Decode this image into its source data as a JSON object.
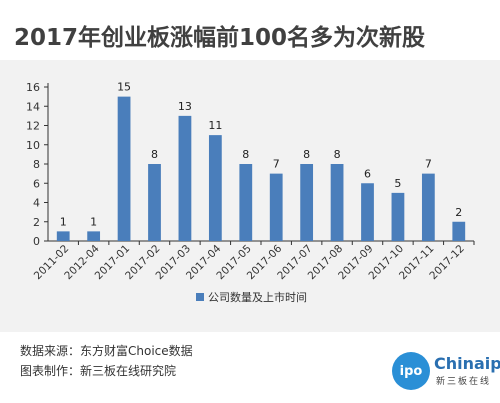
{
  "header": {
    "title": "2017年创业板涨幅前100名多为次新股"
  },
  "footer": {
    "source": "数据来源：东方财富Choice数据",
    "maker": "图表制作：新三板在线研究院"
  },
  "logo": {
    "badge": "ipo",
    "name": "Chinaipo",
    "sub": "新三板在线"
  },
  "chart_data": {
    "type": "bar",
    "categories": [
      "2011-02",
      "2012-04",
      "2017-01",
      "2017-02",
      "2017-03",
      "2017-04",
      "2017-05",
      "2017-06",
      "2017-07",
      "2017-08",
      "2017-09",
      "2017-10",
      "2017-11",
      "2017-12"
    ],
    "series": [
      {
        "name": "公司数量及上市时间",
        "values": [
          1,
          1,
          15,
          8,
          13,
          11,
          8,
          7,
          8,
          8,
          6,
          5,
          7,
          2
        ],
        "color": "#4a7ebb"
      }
    ],
    "yticks": [
      "0",
      "2",
      "4",
      "6",
      "8",
      "10",
      "12",
      "14",
      "16"
    ],
    "ylim": [
      0,
      16
    ],
    "legend_position": "bottom",
    "grid": false
  }
}
